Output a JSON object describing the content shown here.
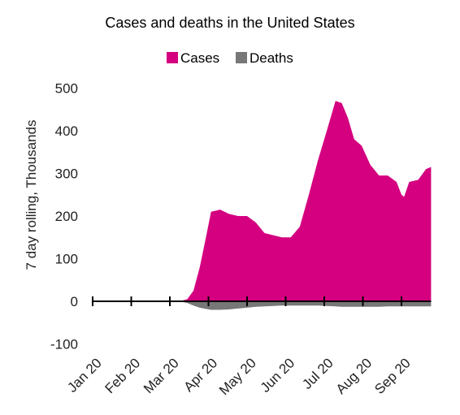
{
  "chart_data": {
    "type": "area",
    "title": "Cases and deaths in the United States",
    "ylabel": "7 day rolling, Thousands",
    "xlabel": "",
    "ylim": [
      -100,
      500
    ],
    "yticks": [
      -100,
      0,
      100,
      200,
      300,
      400,
      500
    ],
    "xticks": [
      "Jan 20",
      "Feb 20",
      "Mar 20",
      "Apr 20",
      "May 20",
      "Jun 20",
      "Jul 20",
      "Aug 20",
      "Sep 20"
    ],
    "legend_position": "top-center",
    "grid": false,
    "colors": {
      "cases": "#d4007f",
      "deaths": "#777777",
      "axis": "#000000"
    },
    "x_dates": [
      "2020-01-01",
      "2020-02-01",
      "2020-03-01",
      "2020-03-10",
      "2020-03-15",
      "2020-03-20",
      "2020-03-25",
      "2020-03-30",
      "2020-04-03",
      "2020-04-10",
      "2020-04-17",
      "2020-04-24",
      "2020-05-01",
      "2020-05-08",
      "2020-05-15",
      "2020-05-22",
      "2020-05-29",
      "2020-06-05",
      "2020-06-12",
      "2020-06-19",
      "2020-06-26",
      "2020-07-03",
      "2020-07-10",
      "2020-07-15",
      "2020-07-20",
      "2020-07-25",
      "2020-07-31",
      "2020-08-07",
      "2020-08-14",
      "2020-08-21",
      "2020-08-28",
      "2020-09-01",
      "2020-09-03",
      "2020-09-07",
      "2020-09-14",
      "2020-09-20",
      "2020-09-24"
    ],
    "series": [
      {
        "name": "Cases",
        "values": [
          0,
          0,
          0,
          1,
          5,
          25,
          80,
          150,
          210,
          215,
          205,
          200,
          200,
          185,
          160,
          155,
          150,
          150,
          175,
          250,
          330,
          400,
          470,
          465,
          430,
          380,
          365,
          320,
          295,
          295,
          280,
          250,
          245,
          280,
          285,
          310,
          315
        ]
      },
      {
        "name": "Deaths",
        "values": [
          0,
          0,
          0,
          -1,
          -4,
          -10,
          -15,
          -18,
          -20,
          -20,
          -19,
          -17,
          -15,
          -13,
          -12,
          -11,
          -10,
          -10,
          -10,
          -10,
          -10,
          -11,
          -12,
          -13,
          -13,
          -13,
          -13,
          -13,
          -13,
          -12,
          -12,
          -12,
          -12,
          -12,
          -12,
          -12,
          -12
        ]
      }
    ]
  }
}
